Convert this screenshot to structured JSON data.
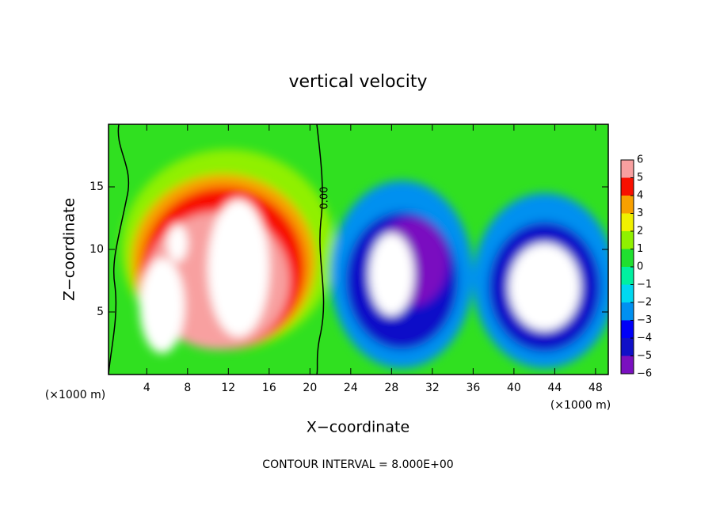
{
  "chart_data": {
    "type": "contour",
    "title": "vertical velocity",
    "x_label": "X−coordinate",
    "y_label": "Z−coordinate",
    "x_unit_left": "(×1000 m)",
    "x_unit_right": "(×1000 m)",
    "footer": "CONTOUR INTERVAL = 8.000E+00",
    "contour_label": "0.00",
    "xlim": [
      0.25,
      49.25
    ],
    "ylim": [
      0,
      20
    ],
    "xticks": [
      4,
      8,
      12,
      16,
      20,
      24,
      28,
      32,
      36,
      40,
      44,
      48
    ],
    "yticks": [
      5,
      10,
      15
    ],
    "background_color": "#30e020",
    "colorbar": {
      "ticks": [
        6,
        5,
        4,
        3,
        2,
        1,
        0,
        {
          "value": -1,
          "label": "−1"
        },
        {
          "value": -2,
          "label": "−2"
        },
        {
          "value": -3,
          "label": "−3"
        },
        {
          "value": -4,
          "label": "−4"
        },
        {
          "value": -5,
          "label": "−5"
        },
        {
          "value": -6,
          "label": "−6"
        }
      ],
      "colors": [
        "#7a10c0",
        "#1010c8",
        "#0000f8",
        "#0090f0",
        "#00d8f0",
        "#00f0a0",
        "#20e030",
        "#90f000",
        "#f0f000",
        "#f8a000",
        "#f81000",
        "#f8a0a0"
      ]
    },
    "regions": [
      {
        "x": 12,
        "z": 10,
        "rx": 10.5,
        "rz": 8,
        "value": 1.5
      },
      {
        "x": 11.5,
        "z": 9,
        "rx": 9,
        "rz": 7,
        "value": 3.5
      },
      {
        "x": 11.5,
        "z": 8.5,
        "rx": 8,
        "rz": 6.5,
        "value": 4.5
      },
      {
        "x": 11,
        "z": 7.5,
        "rx": 7,
        "rz": 5.5,
        "value": 5.5
      },
      {
        "x": 5.5,
        "z": 5.5,
        "rx": 2.2,
        "rz": 3.8,
        "value": 8
      },
      {
        "x": 13,
        "z": 8.5,
        "rx": 3,
        "rz": 5.5,
        "value": 8
      },
      {
        "x": 7,
        "z": 10.5,
        "rx": 1,
        "rz": 1.5,
        "value": 8
      },
      {
        "x": 29,
        "z": 8,
        "rx": 7,
        "rz": 7.5,
        "value": -2.5
      },
      {
        "x": 29,
        "z": 7.5,
        "rx": 5.5,
        "rz": 5.5,
        "value": -4.5
      },
      {
        "x": 30,
        "z": 9,
        "rx": 3.5,
        "rz": 3.5,
        "value": -5.5
      },
      {
        "x": 28,
        "z": 8,
        "rx": 2.2,
        "rz": 3.3,
        "value": -8
      },
      {
        "x": 43,
        "z": 7.5,
        "rx": 7,
        "rz": 7,
        "value": -2.5
      },
      {
        "x": 43,
        "z": 7,
        "rx": 5.5,
        "rz": 5.2,
        "value": -4.5
      },
      {
        "x": 43,
        "z": 7,
        "rx": 3.5,
        "rz": 3.5,
        "value": -8
      }
    ]
  }
}
